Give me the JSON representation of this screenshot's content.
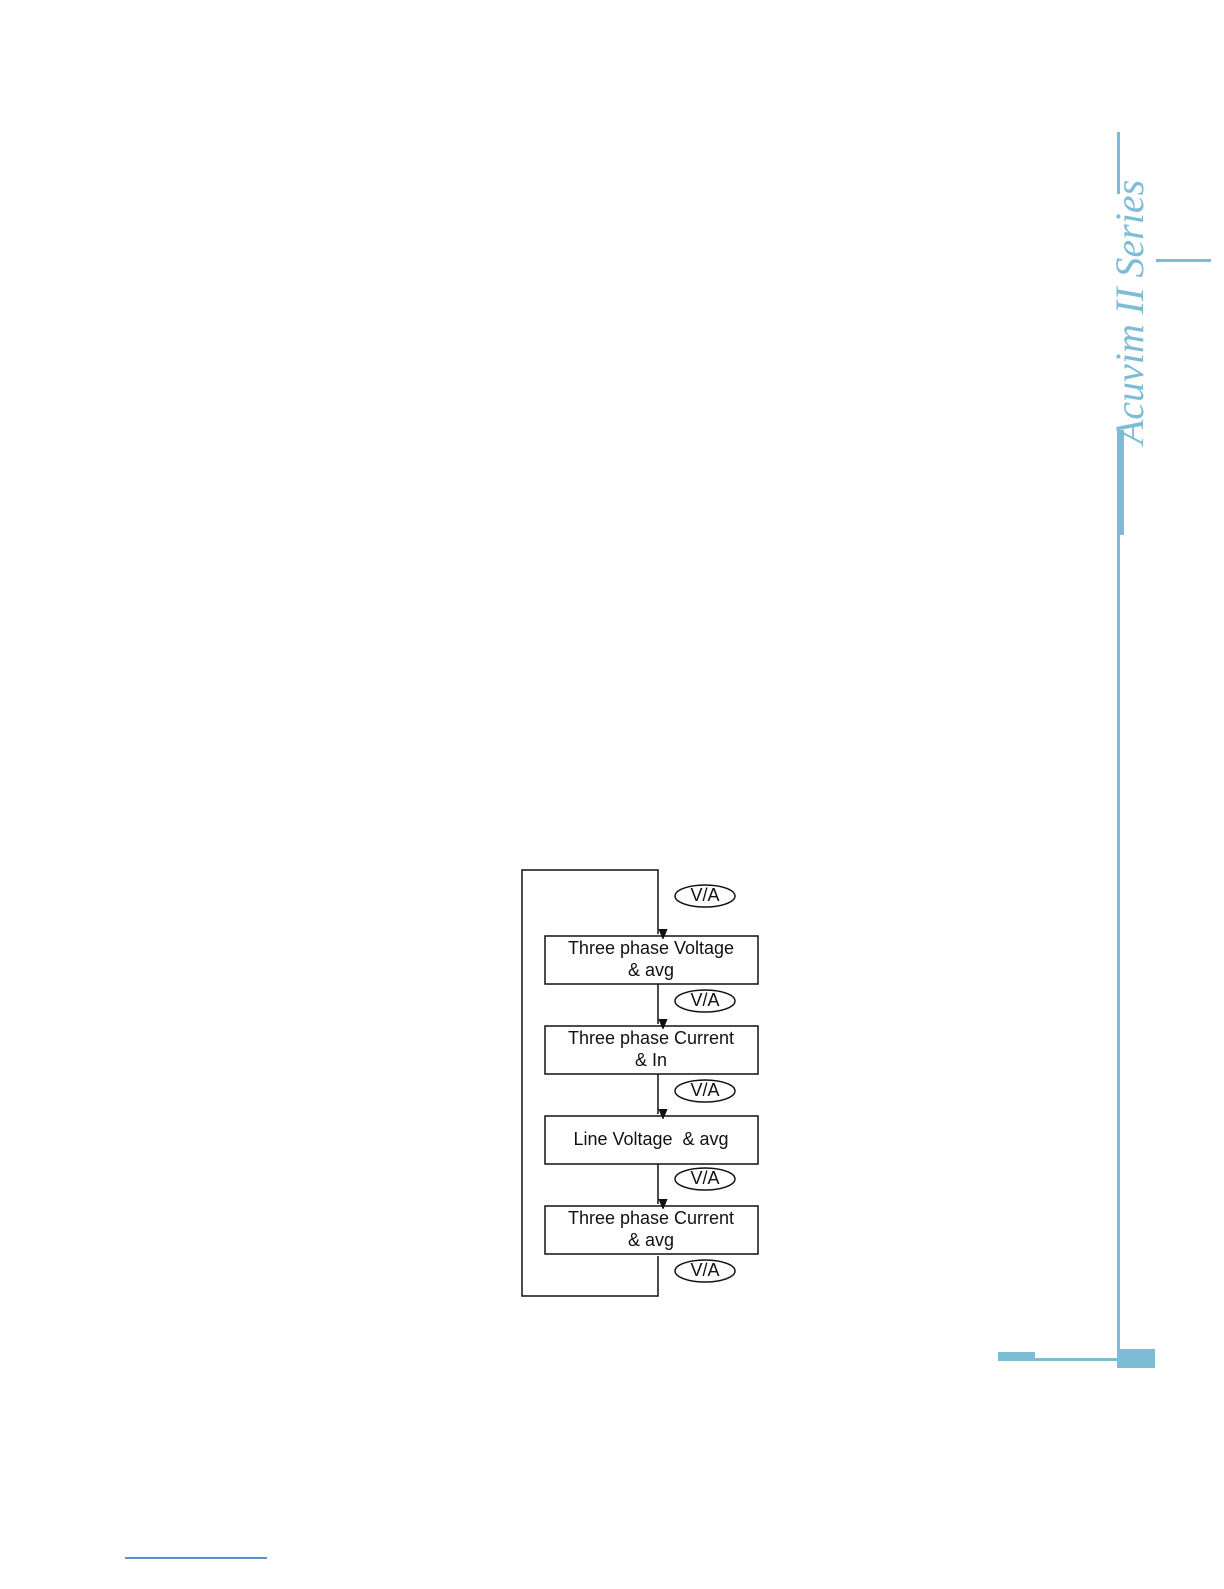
{
  "brand": "Acuvim II Series",
  "flowchart": {
    "nodes": [
      {
        "lines": [
          "Three phase Voltage",
          "& avg"
        ]
      },
      {
        "lines": [
          "Three phase Current",
          "& In"
        ]
      },
      {
        "lines": [
          "Line Voltage  & avg"
        ]
      },
      {
        "lines": [
          "Three phase Current",
          "& avg"
        ]
      }
    ],
    "buttons": [
      "V/A",
      "V/A",
      "V/A",
      "V/A",
      "V/A"
    ]
  }
}
